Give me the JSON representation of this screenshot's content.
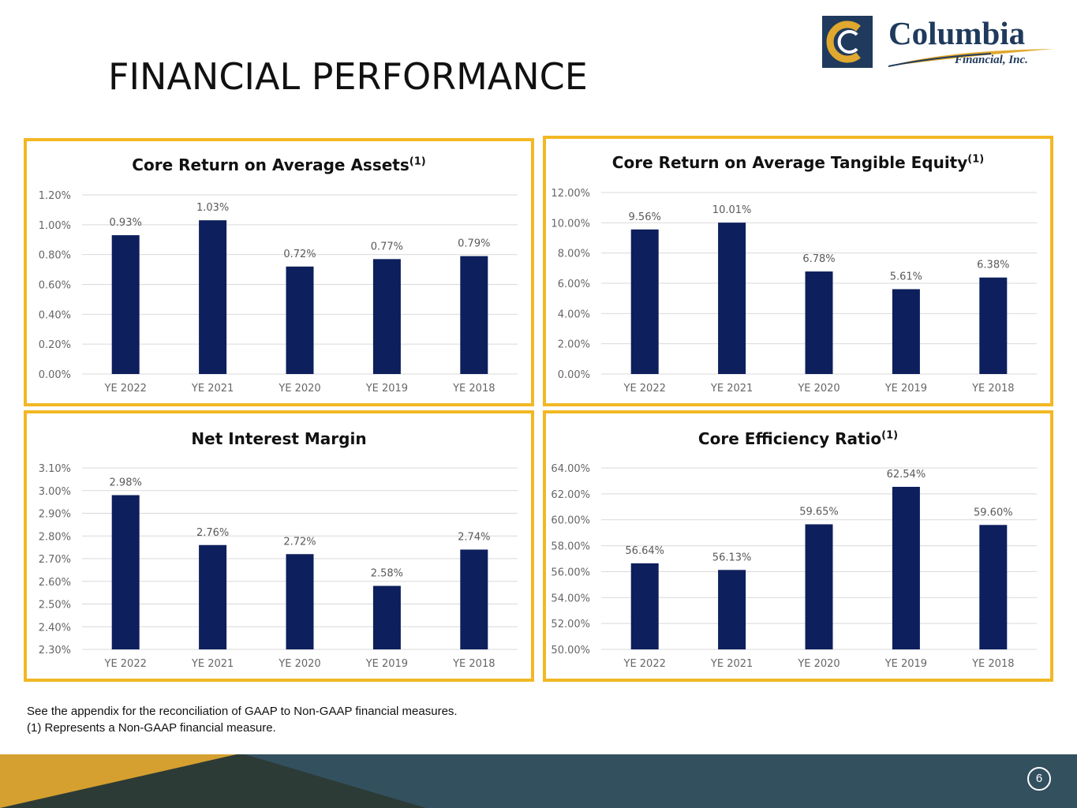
{
  "page": {
    "title": "FINANCIAL PERFORMANCE",
    "page_number": "6",
    "footnotes": [
      "See the appendix for the reconciliation of GAAP to Non-GAAP financial measures.",
      "(1) Represents a Non-GAAP financial measure."
    ]
  },
  "logo": {
    "name": "Columbia",
    "subtitle": "Financial, Inc."
  },
  "colors": {
    "bar": "#0d1f5c",
    "frame": "#f2b824",
    "band": "#33505f",
    "band_dark": "#2c3b35",
    "gold": "#d5a030"
  },
  "chart_data": [
    {
      "type": "bar",
      "title": "Core Return on Average Assets",
      "title_note": "(1)",
      "categories": [
        "YE 2022",
        "YE 2021",
        "YE 2020",
        "YE 2019",
        "YE 2018"
      ],
      "values": [
        0.93,
        1.03,
        0.72,
        0.77,
        0.79
      ],
      "value_labels": [
        "0.93%",
        "1.03%",
        "0.72%",
        "0.77%",
        "0.79%"
      ],
      "ylim": [
        0,
        1.2
      ],
      "yticks": [
        0,
        0.2,
        0.4,
        0.6,
        0.8,
        1.0,
        1.2
      ],
      "ytick_labels": [
        "0.00%",
        "0.20%",
        "0.40%",
        "0.60%",
        "0.80%",
        "1.00%",
        "1.20%"
      ],
      "grid": true
    },
    {
      "type": "bar",
      "title": "Core Return on Average Tangible Equity",
      "title_note": "(1)",
      "categories": [
        "YE 2022",
        "YE 2021",
        "YE 2020",
        "YE 2019",
        "YE 2018"
      ],
      "values": [
        9.56,
        10.01,
        6.78,
        5.61,
        6.38
      ],
      "value_labels": [
        "9.56%",
        "10.01%",
        "6.78%",
        "5.61%",
        "6.38%"
      ],
      "ylim": [
        0,
        12
      ],
      "yticks": [
        0,
        2,
        4,
        6,
        8,
        10,
        12
      ],
      "ytick_labels": [
        "0.00%",
        "2.00%",
        "4.00%",
        "6.00%",
        "8.00%",
        "10.00%",
        "12.00%"
      ],
      "grid": true
    },
    {
      "type": "bar",
      "title": "Net Interest Margin",
      "title_note": "",
      "categories": [
        "YE 2022",
        "YE 2021",
        "YE 2020",
        "YE 2019",
        "YE 2018"
      ],
      "values": [
        2.98,
        2.76,
        2.72,
        2.58,
        2.74
      ],
      "value_labels": [
        "2.98%",
        "2.76%",
        "2.72%",
        "2.58%",
        "2.74%"
      ],
      "ylim": [
        2.3,
        3.1
      ],
      "yticks": [
        2.3,
        2.4,
        2.5,
        2.6,
        2.7,
        2.8,
        2.9,
        3.0,
        3.1
      ],
      "ytick_labels": [
        "2.30%",
        "2.40%",
        "2.50%",
        "2.60%",
        "2.70%",
        "2.80%",
        "2.90%",
        "3.00%",
        "3.10%"
      ],
      "grid": true
    },
    {
      "type": "bar",
      "title": "Core Efficiency Ratio",
      "title_note": "(1)",
      "categories": [
        "YE 2022",
        "YE 2021",
        "YE 2020",
        "YE 2019",
        "YE 2018"
      ],
      "values": [
        56.64,
        56.13,
        59.65,
        62.54,
        59.6
      ],
      "value_labels": [
        "56.64%",
        "56.13%",
        "59.65%",
        "62.54%",
        "59.60%"
      ],
      "ylim": [
        50,
        64
      ],
      "yticks": [
        50,
        52,
        54,
        56,
        58,
        60,
        62,
        64
      ],
      "ytick_labels": [
        "50.00%",
        "52.00%",
        "54.00%",
        "56.00%",
        "58.00%",
        "60.00%",
        "62.00%",
        "64.00%"
      ],
      "grid": true
    }
  ]
}
